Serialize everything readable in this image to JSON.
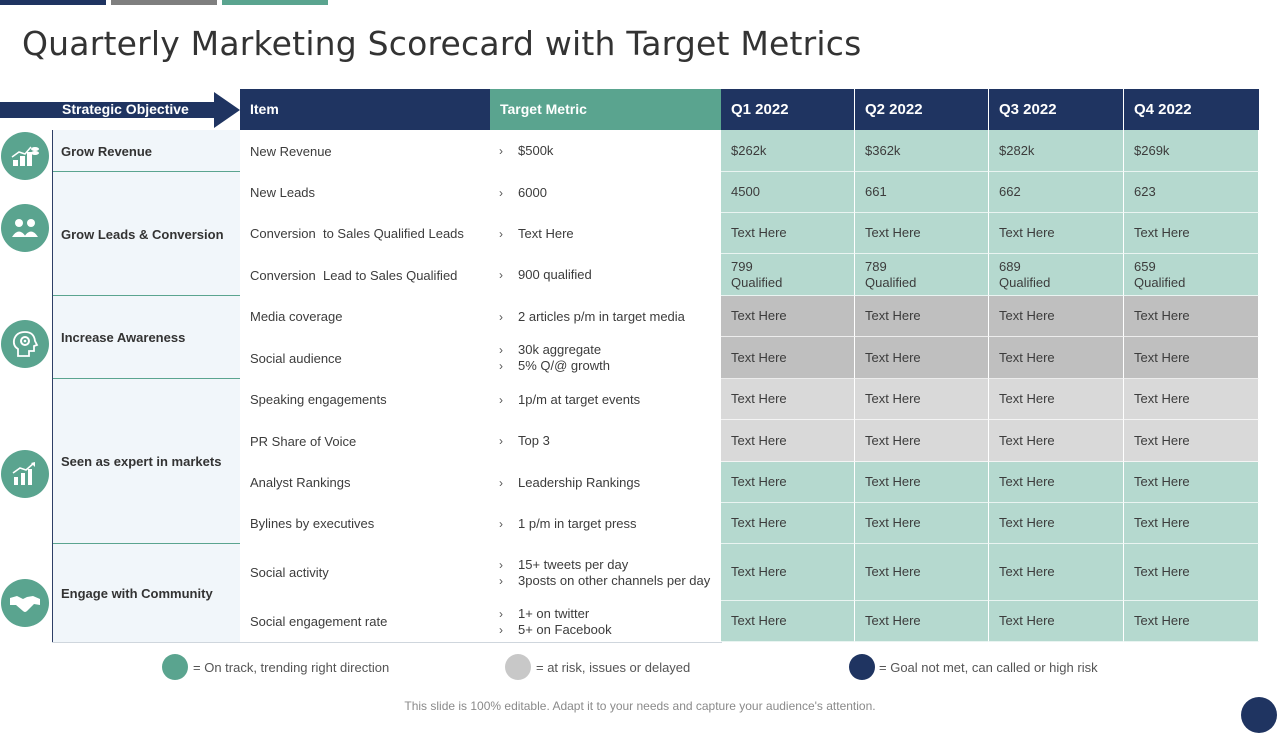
{
  "title": "Quarterly Marketing Scorecard with Target Metrics",
  "colors": {
    "navy": "#1f3461",
    "teal": "#5aa48f",
    "on_track_cell": "#b5d9cf",
    "at_risk_cell": "#d9d9d9",
    "not_met_cell": "#bfbfbf",
    "gray_bar": "#7f7f7f"
  },
  "headers": {
    "strategic_objective": "Strategic Objective",
    "item": "Item",
    "target_metric": "Target Metric",
    "quarters": [
      "Q1 2022",
      "Q2 2022",
      "Q3 2022",
      "Q4 2022"
    ]
  },
  "objectives": [
    {
      "label": "Grow Revenue",
      "icon": "revenue-coins-icon"
    },
    {
      "label": "Grow Leads & Conversion",
      "icon": "people-icon"
    },
    {
      "label": "Increase Awareness",
      "icon": "head-gear-icon"
    },
    {
      "label": "Seen as expert in markets",
      "icon": "growth-chart-icon"
    },
    {
      "label": "Engage with Community",
      "icon": "handshake-icon"
    }
  ],
  "rows": [
    {
      "item": "New Revenue",
      "target": [
        "$500k"
      ],
      "status": "on-track",
      "quarters": [
        "$262k",
        "$362k",
        "$282k",
        "$269k"
      ]
    },
    {
      "item": "New Leads",
      "target": [
        "6000"
      ],
      "status": "on-track",
      "quarters": [
        "4500",
        "661",
        "662",
        "623"
      ]
    },
    {
      "item": "Conversion  to Sales Qualified Leads",
      "target": [
        "Text Here"
      ],
      "status": "on-track",
      "quarters": [
        "Text Here",
        "Text Here",
        "Text Here",
        "Text Here"
      ]
    },
    {
      "item": "Conversion  Lead to Sales Qualified",
      "target": [
        "900 qualified"
      ],
      "status": "on-track",
      "quarters": [
        "799\nQualified",
        "789\nQualified",
        "689\nQualified",
        "659\nQualified"
      ]
    },
    {
      "item": "Media coverage",
      "target": [
        "2 articles p/m in target media"
      ],
      "status": "not-met",
      "quarters": [
        "Text Here",
        "Text Here",
        "Text Here",
        "Text Here"
      ]
    },
    {
      "item": "Social audience",
      "target": [
        "30k aggregate",
        "5% Q/@ growth"
      ],
      "status": "not-met",
      "quarters": [
        "Text Here",
        "Text Here",
        "Text Here",
        "Text Here"
      ]
    },
    {
      "item": "Speaking engagements",
      "target": [
        "1p/m at target events"
      ],
      "status": "at-risk",
      "quarters": [
        "Text Here",
        "Text Here",
        "Text Here",
        "Text Here"
      ]
    },
    {
      "item": "PR Share of Voice",
      "target": [
        "Top 3"
      ],
      "status": "at-risk",
      "quarters": [
        "Text Here",
        "Text Here",
        "Text Here",
        "Text Here"
      ]
    },
    {
      "item": "Analyst Rankings",
      "target": [
        "Leadership Rankings"
      ],
      "status": "on-track",
      "quarters": [
        "Text Here",
        "Text Here",
        "Text Here",
        "Text Here"
      ]
    },
    {
      "item": "Bylines by executives",
      "target": [
        "1 p/m in target press"
      ],
      "status": "on-track",
      "quarters": [
        "Text Here",
        "Text Here",
        "Text Here",
        "Text Here"
      ]
    },
    {
      "item": "Social activity",
      "target": [
        "15+ tweets per day",
        "3posts on other channels per day"
      ],
      "status": "on-track",
      "quarters": [
        "Text Here",
        "Text Here",
        "Text Here",
        "Text Here"
      ]
    },
    {
      "item": "Social engagement rate",
      "target": [
        "1+ on twitter",
        "5+ on Facebook"
      ],
      "status": "on-track",
      "quarters": [
        "Text Here",
        "Text Here",
        "Text Here",
        "Text Here"
      ]
    }
  ],
  "legend": [
    {
      "status": "on-track",
      "text": "= On track, trending right direction"
    },
    {
      "status": "at-risk",
      "text": "= at risk, issues or delayed"
    },
    {
      "status": "not-met-legend",
      "text": "= Goal not met, can called or high risk"
    }
  ],
  "footer": "This slide is 100% editable. Adapt it to your needs and capture your audience's attention."
}
